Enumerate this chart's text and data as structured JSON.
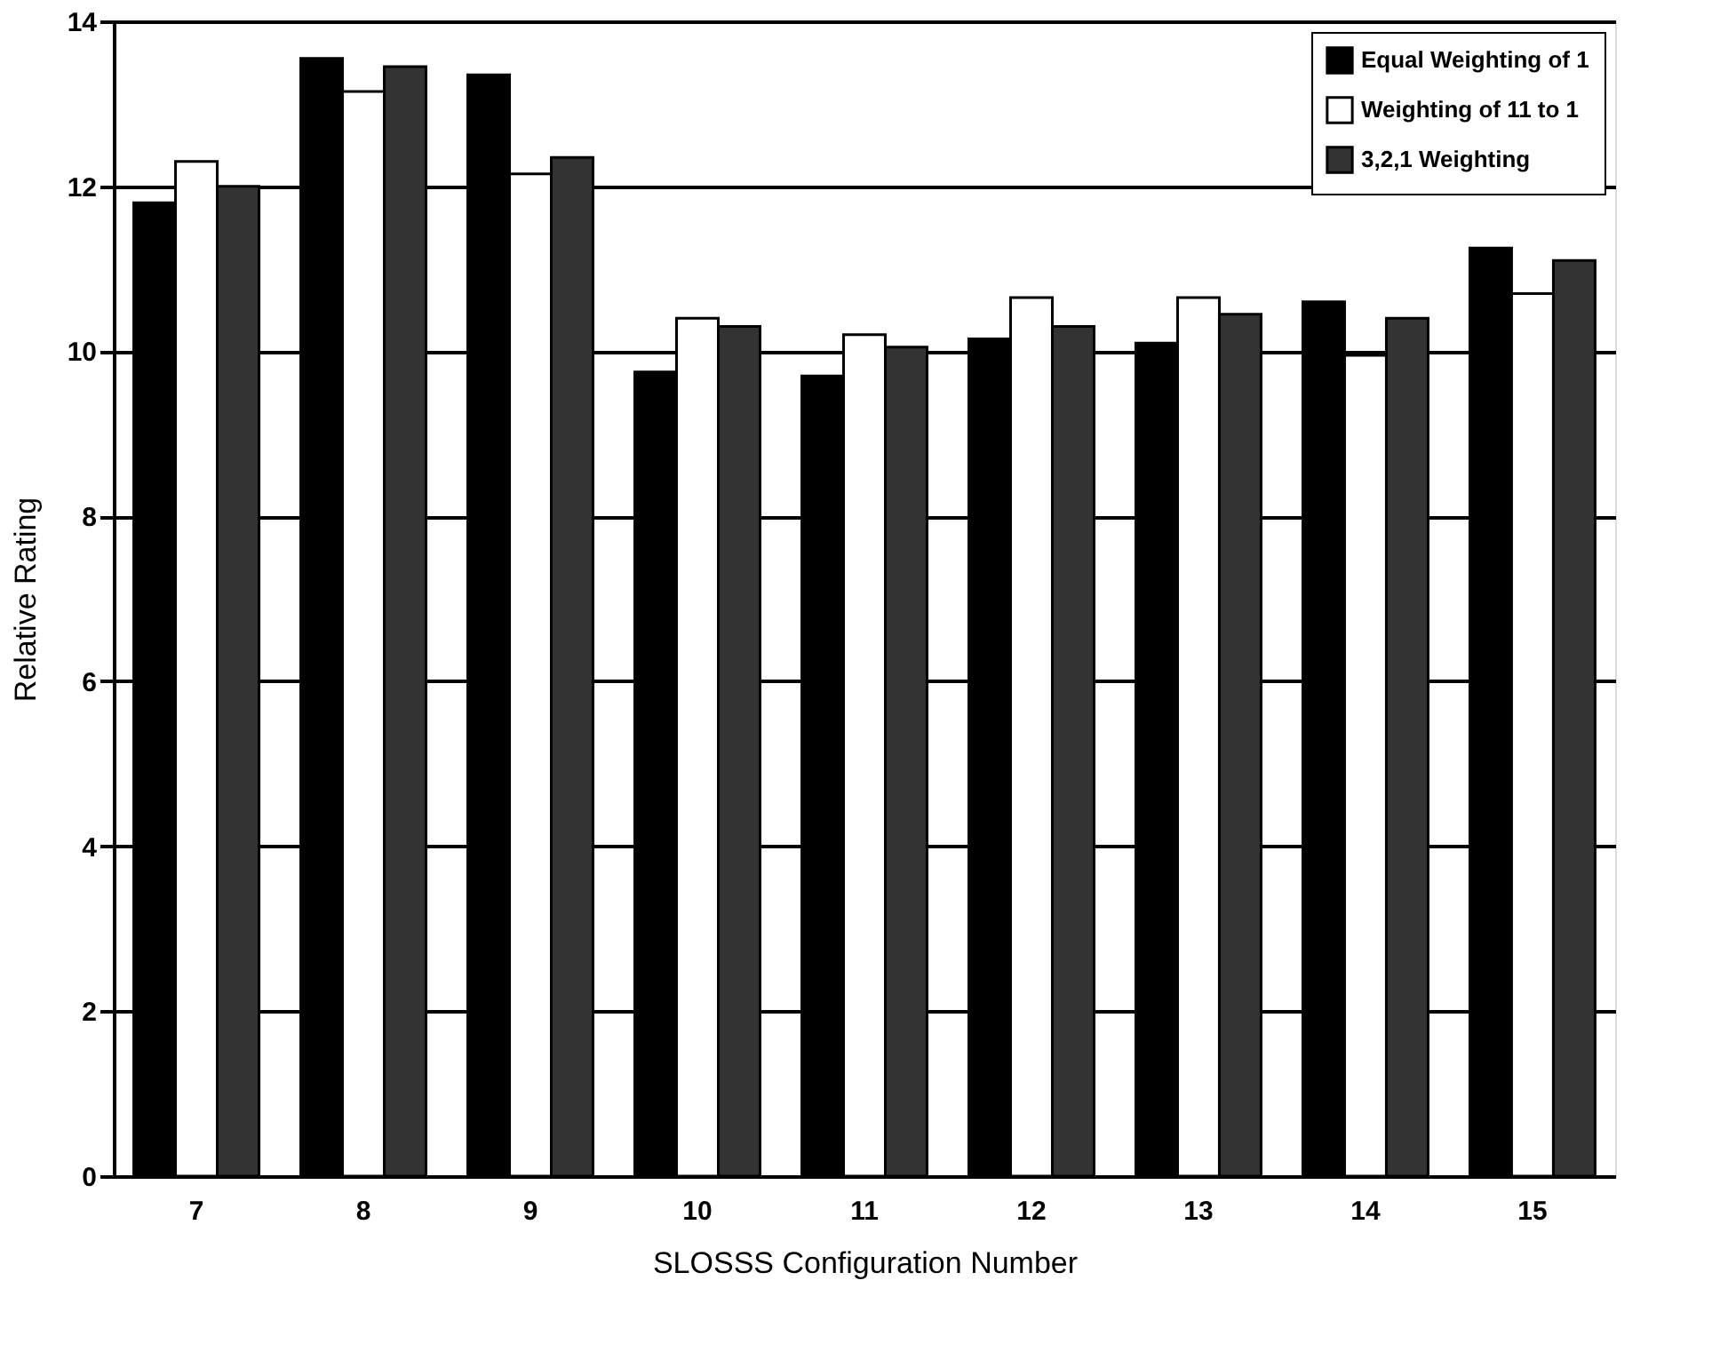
{
  "chart_data": {
    "type": "bar",
    "xlabel": "SLOSSS Configuration Number",
    "ylabel": "Relative Rating",
    "categories": [
      "7",
      "8",
      "9",
      "10",
      "11",
      "12",
      "13",
      "14",
      "15"
    ],
    "series": [
      {
        "name": "Equal Weighting of 1",
        "color": "#000000",
        "values": [
          11.8,
          13.55,
          13.35,
          9.75,
          9.7,
          10.15,
          10.1,
          10.6,
          11.25
        ]
      },
      {
        "name": "Weighting of 11 to 1",
        "color": "#ffffff",
        "values": [
          12.3,
          13.15,
          12.15,
          10.4,
          10.2,
          10.65,
          10.65,
          9.95,
          10.7
        ]
      },
      {
        "name": "3,2,1 Weighting",
        "color": "#333333",
        "values": [
          12.0,
          13.45,
          12.35,
          10.3,
          10.05,
          10.3,
          10.45,
          10.4,
          11.1
        ]
      }
    ],
    "ylim": [
      0,
      14
    ],
    "yticks": [
      0,
      2,
      4,
      6,
      8,
      10,
      12,
      14
    ],
    "grid": "y",
    "legend": "top right"
  }
}
